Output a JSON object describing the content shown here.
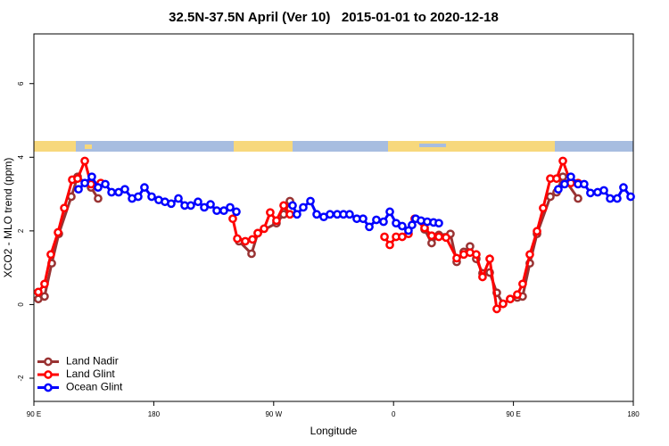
{
  "chart_data": {
    "type": "line",
    "title": "32.5N-37.5N April (Ver 10)   2015-01-01 to 2020-12-18",
    "x_label": "Longitude",
    "y_label": "XCO2 - MLO trend (ppm)",
    "xlim": [
      90,
      540
    ],
    "xticks": [
      {
        "value": 90,
        "label": "90 E"
      },
      180,
      {
        "value": 270,
        "label": "90 W"
      },
      {
        "value": 360,
        "label": "0"
      },
      {
        "value": 450,
        "label": "90 E"
      },
      {
        "value": 540,
        "label": "180"
      }
    ],
    "ylim": [
      -2.63,
      7.35
    ],
    "yticks": [
      -2,
      0,
      2,
      4,
      6
    ],
    "legend": "bottom-left",
    "series": [
      {
        "name": "Land Nadir",
        "color": "#993333",
        "x": [
          93.3,
          98,
          103.4,
          108.7,
          118.1,
          122.8,
          132.9,
          138.2,
          200,
          244,
          253.4,
          258.1,
          272.1,
          277.5,
          282.2,
          330,
          383.3,
          388.6,
          394,
          402.7,
          407.4,
          412.7,
          417.4,
          422.1,
          426.8,
          432.2,
          437.5,
          442.2,
          447.6,
          452.9,
          456.9,
          462.3,
          467.7,
          477.7,
          482.4,
          487.1,
          498.5
        ],
        "values": [
          0.15,
          0.22,
          1.12,
          1.92,
          2.93,
          3.47,
          3.18,
          2.88,
          null,
          1.72,
          1.38,
          1.94,
          2.21,
          2.45,
          2.81,
          null,
          2.04,
          1.67,
          1.89,
          1.92,
          1.16,
          1.43,
          1.58,
          1.24,
          0.85,
          0.87,
          0.32,
          0.02,
          0.15,
          0.19,
          0.22,
          1.12,
          1.92,
          2.93,
          3.05,
          3.47,
          2.88
        ]
      },
      {
        "name": "Land Glint",
        "color": "#ff0000",
        "x": [
          93.3,
          98,
          102.7,
          108.1,
          112.8,
          118.8,
          122.8,
          128.2,
          132.9,
          140.2,
          200,
          239.3,
          242.7,
          248.7,
          254.1,
          258.1,
          262.8,
          267.4,
          272.1,
          277.5,
          282.2,
          330,
          353.2,
          357.2,
          361.9,
          366.5,
          371.2,
          375.9,
          383.3,
          388.6,
          394,
          399.4,
          407.4,
          412.7,
          417.4,
          422.1,
          426.8,
          432.2,
          437.5,
          442.2,
          447.6,
          452.9,
          456.9,
          462.3,
          467.7,
          472.3,
          477.7,
          482.4,
          487.1,
          493.1,
          498.5
        ],
        "values": [
          0.34,
          0.56,
          1.36,
          1.96,
          2.62,
          3.39,
          3.42,
          3.9,
          3.27,
          3.3,
          null,
          2.33,
          1.79,
          1.72,
          1.77,
          1.94,
          2.06,
          2.5,
          2.28,
          2.69,
          2.45,
          null,
          1.84,
          1.62,
          1.84,
          1.84,
          1.92,
          2.33,
          2.08,
          1.87,
          1.84,
          1.82,
          1.26,
          1.36,
          1.41,
          1.36,
          0.75,
          1.24,
          -0.12,
          0.02,
          0.15,
          0.27,
          0.56,
          1.36,
          1.99,
          2.62,
          3.42,
          3.42,
          3.9,
          3.3,
          3.3
        ]
      },
      {
        "name": "Ocean Glint",
        "color": "#0000ff",
        "x": [
          123.5,
          128.2,
          133.5,
          138.2,
          143.6,
          148.3,
          153.6,
          158.3,
          163.7,
          168.3,
          173,
          178.4,
          183.7,
          188.4,
          193.1,
          198.5,
          203.2,
          207.8,
          213.2,
          217.9,
          222.6,
          227.3,
          232.6,
          237.3,
          242,
          260,
          284.2,
          287.5,
          292.2,
          297.6,
          302.3,
          307.6,
          312.3,
          317.7,
          322.4,
          327,
          332.4,
          337.1,
          341.8,
          347.1,
          352.5,
          357.2,
          361.9,
          366.5,
          371.2,
          373.9,
          376.6,
          380.6,
          385.3,
          390,
          394,
          440,
          483.7,
          488.4,
          493.1,
          498.5,
          503.1,
          507.8,
          513.2,
          517.9,
          522.6,
          527.9,
          532.6,
          538
        ],
        "values": [
          3.13,
          3.3,
          3.47,
          3.18,
          3.27,
          3.05,
          3.05,
          3.13,
          2.88,
          2.93,
          3.18,
          2.93,
          2.84,
          2.79,
          2.74,
          2.88,
          2.69,
          2.69,
          2.79,
          2.64,
          2.72,
          2.55,
          2.55,
          2.64,
          2.52,
          null,
          2.69,
          2.45,
          2.64,
          2.81,
          2.45,
          2.38,
          2.45,
          2.45,
          2.45,
          2.45,
          2.33,
          2.33,
          2.11,
          2.3,
          2.25,
          2.52,
          2.21,
          2.13,
          2.01,
          2.16,
          2.33,
          2.28,
          2.25,
          2.23,
          2.21,
          null,
          3.13,
          3.27,
          3.47,
          3.27,
          3.27,
          3.03,
          3.05,
          3.1,
          2.88,
          2.88,
          3.18,
          2.93
        ]
      }
    ]
  }
}
